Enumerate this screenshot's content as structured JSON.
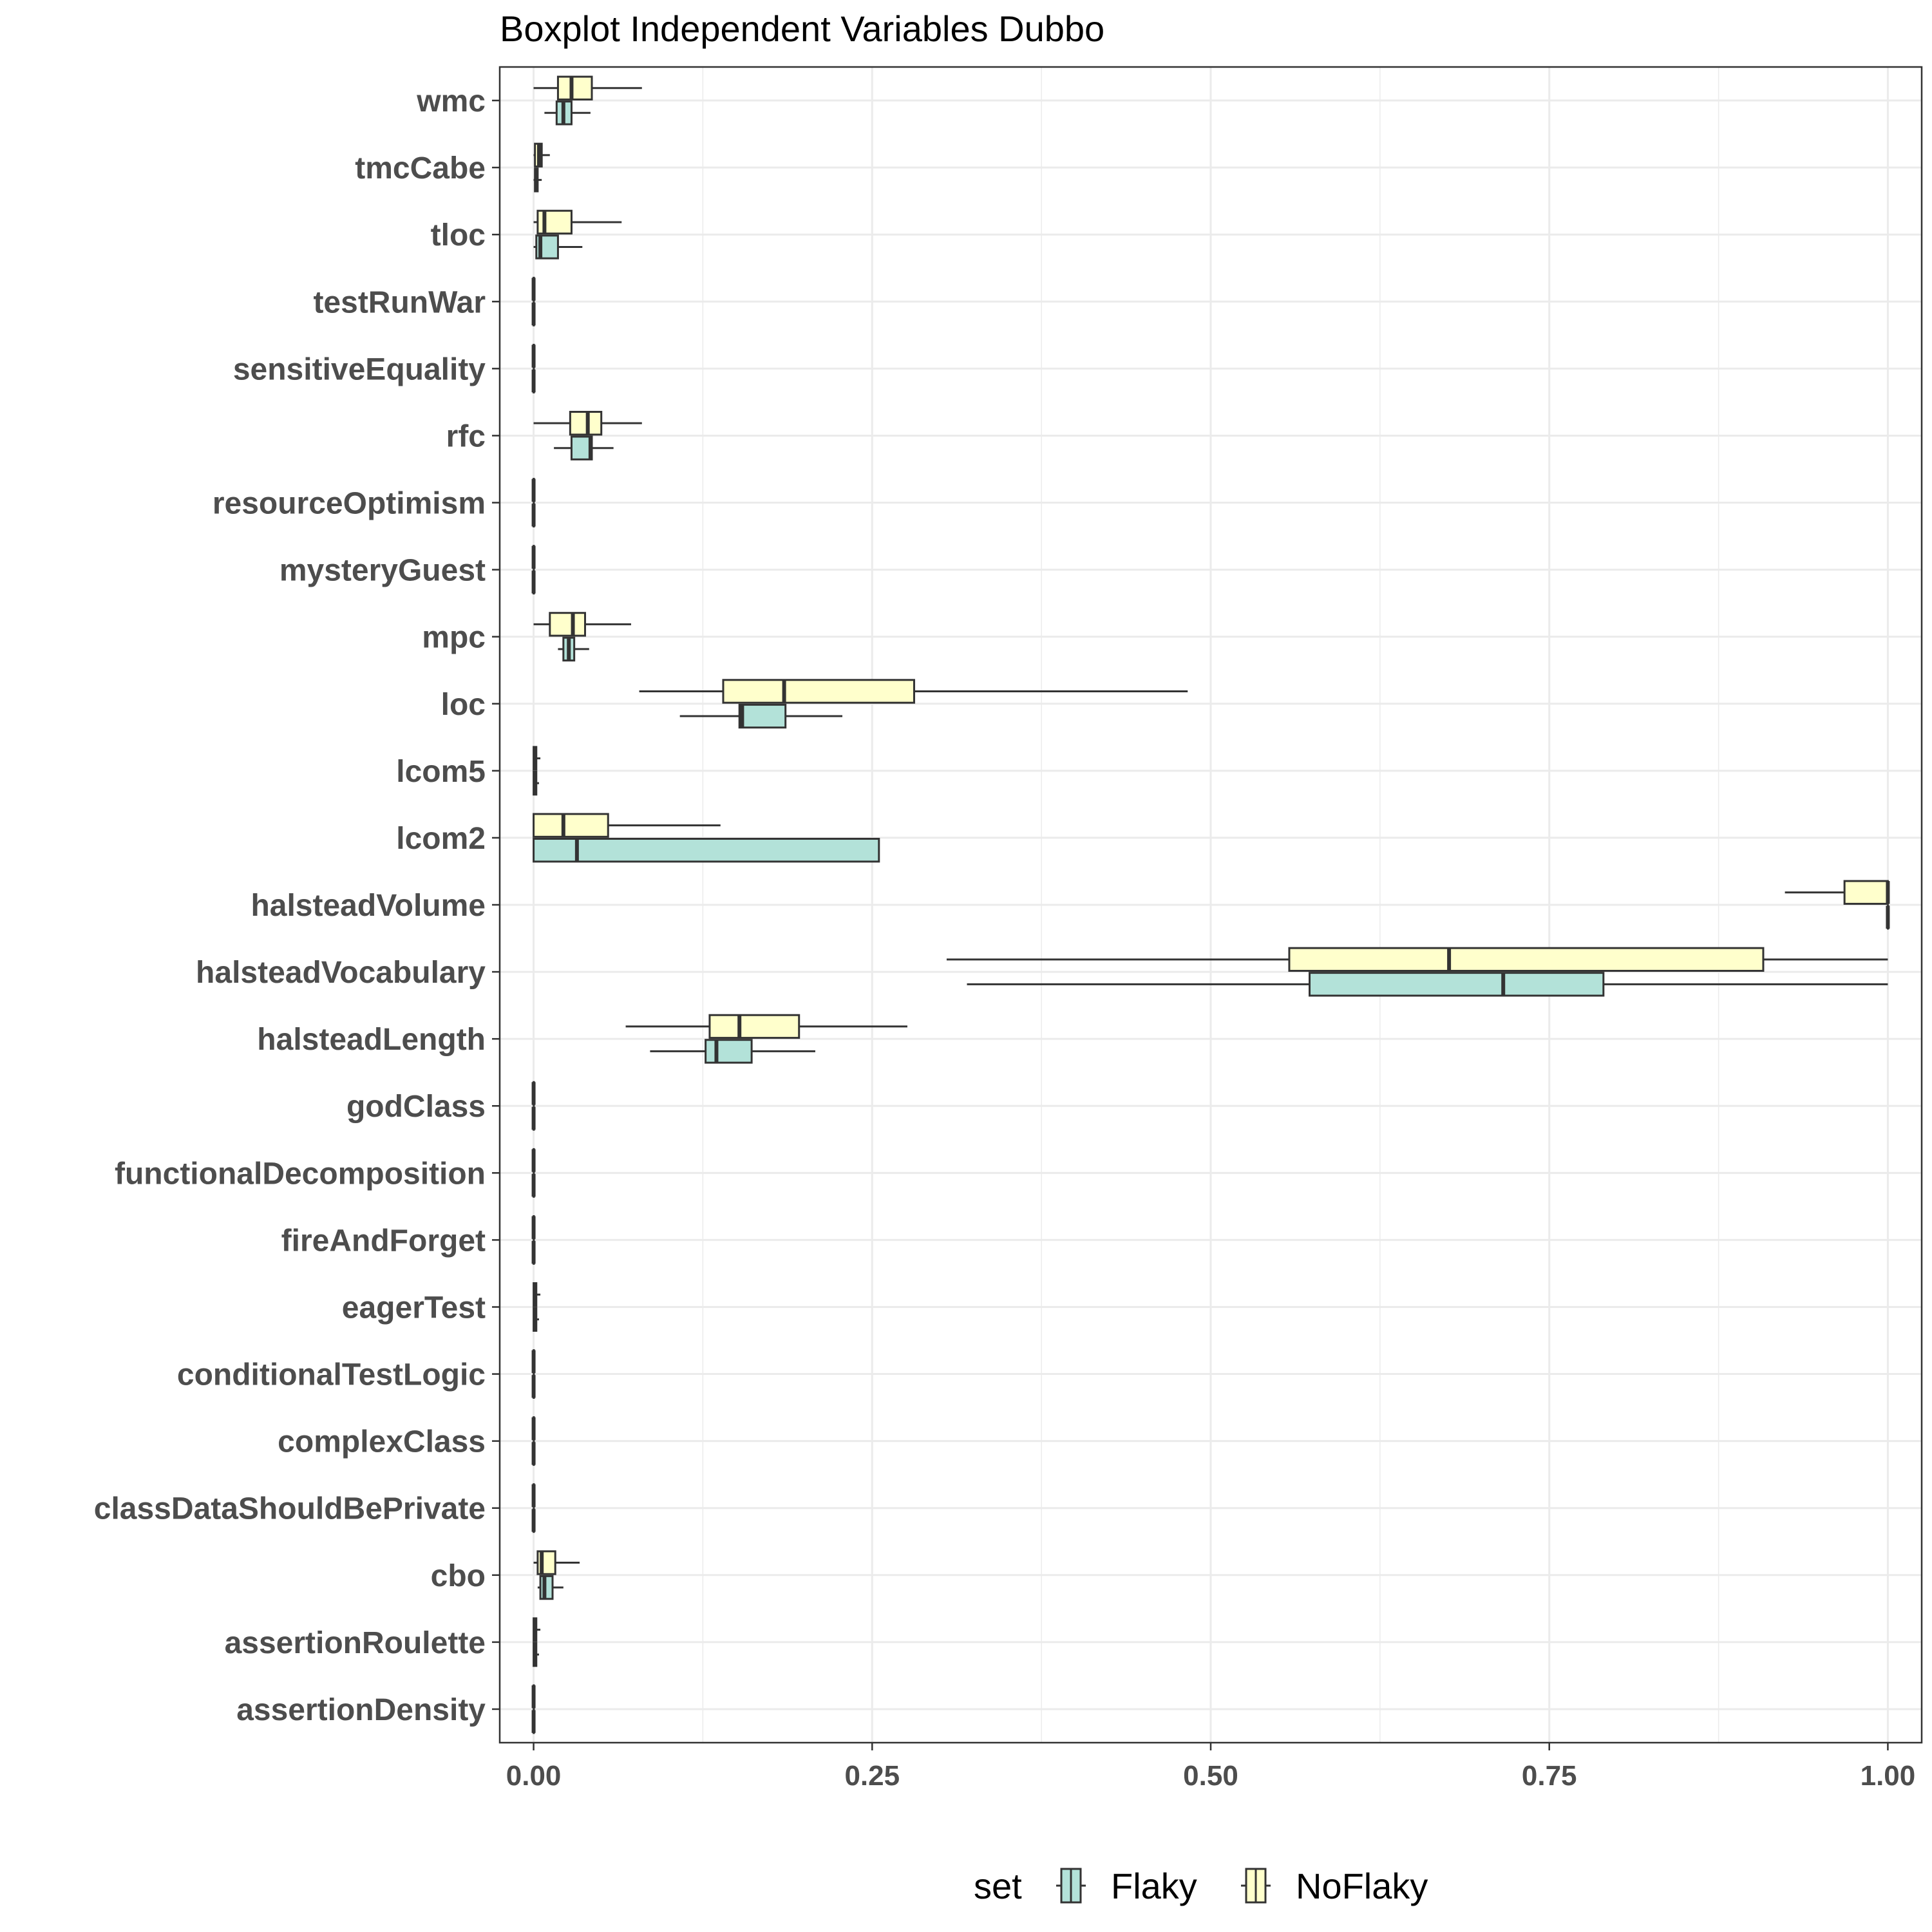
{
  "chart_data": {
    "type": "boxplot",
    "title": "Boxplot Independent Variables Dubbo",
    "xlabel": "",
    "ylabel": "",
    "xlim": [
      -0.025,
      1.025
    ],
    "x_ticks": [
      0,
      0.25,
      0.5,
      0.75,
      1
    ],
    "x_tick_labels": [
      "0.00",
      "0.25",
      "0.50",
      "0.75",
      "1.00"
    ],
    "grid": true,
    "legend": {
      "title": "set",
      "position": "bottom"
    },
    "colors": {
      "Flaky": "#b3e2d9",
      "NoFlaky": "#ffffcc",
      "outline": "#333333",
      "grid": "#ebebeb"
    },
    "categories": [
      "wmc",
      "tmcCabe",
      "tloc",
      "testRunWar",
      "sensitiveEquality",
      "rfc",
      "resourceOptimism",
      "mysteryGuest",
      "mpc",
      "loc",
      "lcom5",
      "lcom2",
      "halsteadVolume",
      "halsteadVocabulary",
      "halsteadLength",
      "godClass",
      "functionalDecomposition",
      "fireAndForget",
      "eagerTest",
      "conditionalTestLogic",
      "complexClass",
      "classDataShouldBePrivate",
      "cbo",
      "assertionRoulette",
      "assertionDensity"
    ],
    "series": [
      {
        "name": "Flaky",
        "stats": [
          [
            0.008,
            0.017,
            0.022,
            0.028,
            0.042
          ],
          [
            0.0,
            0.001,
            0.002,
            0.003,
            0.006
          ],
          [
            0.0,
            0.002,
            0.005,
            0.018,
            0.036
          ],
          [
            0,
            0,
            0,
            0,
            0
          ],
          [
            0,
            0,
            0,
            0,
            0
          ],
          [
            0.015,
            0.028,
            0.042,
            0.043,
            0.059
          ],
          [
            0,
            0,
            0,
            0,
            0
          ],
          [
            0,
            0,
            0,
            0,
            0
          ],
          [
            0.018,
            0.022,
            0.026,
            0.03,
            0.041
          ],
          [
            0.108,
            0.152,
            0.154,
            0.186,
            0.228
          ],
          [
            0.0,
            0.0,
            0.001,
            0.002,
            0.004
          ],
          [
            0.0,
            0.0,
            0.032,
            0.255,
            0.255
          ],
          [
            1.0,
            1.0,
            1.0,
            1.0,
            1.0
          ],
          [
            0.32,
            0.573,
            0.716,
            0.79,
            1.0
          ],
          [
            0.086,
            0.127,
            0.135,
            0.161,
            0.208
          ],
          [
            0,
            0,
            0,
            0,
            0
          ],
          [
            0,
            0,
            0,
            0,
            0
          ],
          [
            0,
            0,
            0,
            0,
            0
          ],
          [
            0.0,
            0.0,
            0.001,
            0.002,
            0.004
          ],
          [
            0,
            0,
            0,
            0,
            0
          ],
          [
            0,
            0,
            0,
            0,
            0
          ],
          [
            0,
            0,
            0,
            0,
            0
          ],
          [
            0.003,
            0.005,
            0.008,
            0.014,
            0.022
          ],
          [
            0.0,
            0.0,
            0.001,
            0.002,
            0.004
          ],
          [
            0,
            0,
            0,
            0,
            0
          ]
        ]
      },
      {
        "name": "NoFlaky",
        "stats": [
          [
            0.0,
            0.018,
            0.028,
            0.043,
            0.08
          ],
          [
            0.0,
            0.001,
            0.004,
            0.006,
            0.012
          ],
          [
            0.0,
            0.003,
            0.008,
            0.028,
            0.065
          ],
          [
            0,
            0,
            0,
            0,
            0
          ],
          [
            0,
            0,
            0,
            0,
            0
          ],
          [
            0.0,
            0.027,
            0.04,
            0.05,
            0.08
          ],
          [
            0,
            0,
            0,
            0,
            0
          ],
          [
            0,
            0,
            0,
            0,
            0
          ],
          [
            0.0,
            0.012,
            0.029,
            0.038,
            0.072
          ],
          [
            0.078,
            0.14,
            0.185,
            0.281,
            0.483
          ],
          [
            0.0,
            0.0,
            0.001,
            0.002,
            0.005
          ],
          [
            0.0,
            0.0,
            0.022,
            0.055,
            0.138
          ],
          [
            0.924,
            0.968,
            1.0,
            1.0,
            1.0
          ],
          [
            0.305,
            0.558,
            0.676,
            0.908,
            1.0
          ],
          [
            0.068,
            0.13,
            0.152,
            0.196,
            0.276
          ],
          [
            0,
            0,
            0,
            0,
            0
          ],
          [
            0,
            0,
            0,
            0,
            0
          ],
          [
            0,
            0,
            0,
            0,
            0
          ],
          [
            0.0,
            0.0,
            0.001,
            0.002,
            0.005
          ],
          [
            0,
            0,
            0,
            0,
            0
          ],
          [
            0,
            0,
            0,
            0,
            0
          ],
          [
            0,
            0,
            0,
            0,
            0
          ],
          [
            0.0,
            0.003,
            0.006,
            0.016,
            0.034
          ],
          [
            0.0,
            0.0,
            0.001,
            0.002,
            0.005
          ],
          [
            0,
            0,
            0,
            0,
            0
          ]
        ]
      }
    ]
  }
}
